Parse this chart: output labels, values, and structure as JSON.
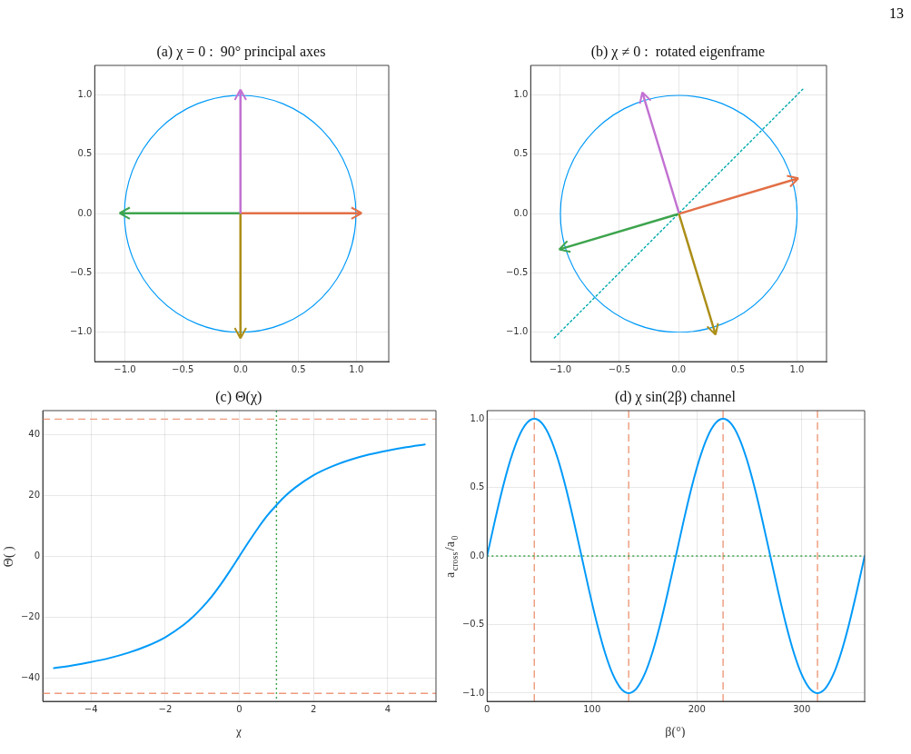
{
  "chart_data": [
    {
      "type": "line",
      "title": "(a) χ = 0 :  90° principal axes",
      "annotations": [
        "13"
      ],
      "xlim": [
        -1.26,
        1.28
      ],
      "ylim": [
        -1.25,
        1.25
      ],
      "grid": true,
      "xticks": [
        {
          "value": -1,
          "label": "−1.0"
        },
        {
          "value": -0.5,
          "label": "−0.5"
        },
        {
          "value": 0,
          "label": "0.0"
        },
        {
          "value": 0.5,
          "label": "0.5"
        },
        {
          "value": 1,
          "label": "1.0"
        }
      ],
      "yticks": [
        {
          "value": -1,
          "label": "−1.0"
        },
        {
          "value": -0.5,
          "label": "−0.5"
        },
        {
          "value": 0,
          "label": "0.0"
        },
        {
          "value": 0.5,
          "label": "0.5"
        },
        {
          "value": 1,
          "label": "1.0"
        }
      ]
    },
    {
      "type": "line",
      "title": "(b) χ ≠ 0 :  rotated eigenframe",
      "xlim": [
        -1.25,
        1.25
      ],
      "ylim": [
        -1.25,
        1.25
      ],
      "grid": true,
      "xticks": [
        {
          "value": -1,
          "label": "−1.0"
        },
        {
          "value": -0.5,
          "label": "−0.5"
        },
        {
          "value": 0,
          "label": "0.0"
        },
        {
          "value": 0.5,
          "label": "0.5"
        },
        {
          "value": 1,
          "label": "1.0"
        }
      ],
      "yticks": [
        {
          "value": -1,
          "label": "−1.0"
        },
        {
          "value": -0.5,
          "label": "−0.5"
        },
        {
          "value": 0,
          "label": "0.0"
        },
        {
          "value": 0.5,
          "label": "0.5"
        },
        {
          "value": 1,
          "label": "1.0"
        }
      ],
      "series": [
        {
          "color": "#00a9ad",
          "line_style": "dotted",
          "x": [
            -1.05,
            1.05
          ],
          "values": [
            -1.05,
            1.05
          ]
        }
      ]
    },
    {
      "type": "line",
      "title": "(c) Θ(χ)",
      "xlabel": "χ",
      "ylabel": "Θ( )",
      "xlim": [
        -5.3,
        5.3
      ],
      "ylim": [
        -47.6,
        47.8
      ],
      "grid": true,
      "xticks": [
        {
          "value": -4,
          "label": "−4"
        },
        {
          "value": -2,
          "label": "−2"
        },
        0,
        2,
        4
      ],
      "yticks": [
        {
          "value": -40,
          "label": "−40"
        },
        {
          "value": -20,
          "label": "−20"
        },
        0,
        20,
        40
      ],
      "ref_lines": [
        {
          "axis": "y",
          "value": 45,
          "color": "#ee9a7c",
          "line_style": "dashed"
        },
        {
          "axis": "y",
          "value": -45,
          "color": "#ee9a7c",
          "line_style": "dashed"
        },
        {
          "axis": "x",
          "value": 1,
          "color": "#3da44d",
          "line_style": "dotted"
        }
      ],
      "series": [
        {
          "color": "#009af9",
          "x": [
            -5,
            -4.5,
            -4,
            -3.5,
            -3,
            -2.5,
            -2,
            -1.5,
            -1.25,
            -1,
            -0.75,
            -0.5,
            -0.25,
            0,
            0.25,
            0.5,
            0.75,
            1,
            1.25,
            1.5,
            2,
            2.5,
            3,
            3.5,
            4,
            4.5,
            5
          ],
          "values": [
            -36.7,
            -35.8,
            -34.7,
            -33.4,
            -31.7,
            -29.5,
            -26.6,
            -22.5,
            -19.9,
            -16.8,
            -13.3,
            -9.2,
            -4.7,
            0,
            4.7,
            9.2,
            13.3,
            16.8,
            19.9,
            22.5,
            26.6,
            29.5,
            31.7,
            33.4,
            34.7,
            35.8,
            36.7
          ]
        }
      ]
    },
    {
      "type": "line",
      "title": "(d) χ sin(2β) channel",
      "xlabel": "β(°)",
      "ylabel": "a$_{cross}$/a$_{0}$",
      "xlim": [
        0,
        360
      ],
      "ylim": [
        -1.06,
        1.06
      ],
      "grid": true,
      "xticks": [
        0,
        100,
        200,
        300
      ],
      "yticks": [
        {
          "value": -1,
          "label": "−1.0"
        },
        {
          "value": -0.5,
          "label": "−0.5"
        },
        {
          "value": 0,
          "label": "0.0"
        },
        {
          "value": 0.5,
          "label": "0.5"
        },
        {
          "value": 1,
          "label": "1.0"
        }
      ],
      "ref_lines": [
        {
          "axis": "x",
          "value": 45,
          "color": "#ee9a7c",
          "line_style": "dashed"
        },
        {
          "axis": "x",
          "value": 135,
          "color": "#ee9a7c",
          "line_style": "dashed"
        },
        {
          "axis": "x",
          "value": 225,
          "color": "#ee9a7c",
          "line_style": "dashed"
        },
        {
          "axis": "x",
          "value": 315,
          "color": "#ee9a7c",
          "line_style": "dashed"
        },
        {
          "axis": "y",
          "value": 0,
          "color": "#3da44d",
          "line_style": "dotted"
        }
      ],
      "series": [
        {
          "color": "#009af9",
          "x": [
            0,
            7.5,
            15,
            22.5,
            30,
            37.5,
            45,
            52.5,
            60,
            67.5,
            75,
            82.5,
            90,
            97.5,
            105,
            112.5,
            120,
            127.5,
            135,
            142.5,
            150,
            157.5,
            165,
            172.5,
            180,
            187.5,
            195,
            202.5,
            210,
            217.5,
            225,
            232.5,
            240,
            247.5,
            255,
            262.5,
            270,
            277.5,
            285,
            292.5,
            300,
            307.5,
            315,
            322.5,
            330,
            337.5,
            345,
            352.5,
            360
          ],
          "values": [
            0,
            0.259,
            0.5,
            0.707,
            0.866,
            0.966,
            1,
            0.966,
            0.866,
            0.707,
            0.5,
            0.259,
            0,
            -0.259,
            -0.5,
            -0.707,
            -0.866,
            -0.966,
            -1,
            -0.966,
            -0.866,
            -0.707,
            -0.5,
            -0.259,
            0,
            0.259,
            0.5,
            0.707,
            0.866,
            0.966,
            1,
            0.966,
            0.866,
            0.707,
            0.5,
            0.259,
            0,
            -0.259,
            -0.5,
            -0.707,
            -0.866,
            -0.966,
            -1,
            -0.966,
            -0.866,
            -0.707,
            -0.5,
            -0.259,
            0
          ]
        }
      ]
    }
  ]
}
